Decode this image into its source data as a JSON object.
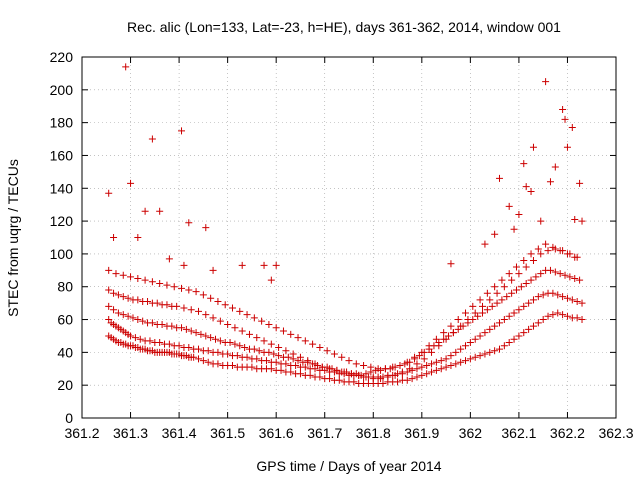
{
  "chart_data": {
    "type": "scatter",
    "title": "Rec. alic (Lon=133, Lat=-23, h=HE), days 361-362, 2014, window 001",
    "xlabel": "GPS time / Days of year 2014",
    "ylabel": "STEC from uqrg / TECUs",
    "xlim": [
      361.2,
      362.3
    ],
    "ylim": [
      0,
      220
    ],
    "xticks": [
      361.2,
      361.3,
      361.4,
      361.5,
      361.6,
      361.7,
      361.8,
      361.9,
      362,
      362.1,
      362.2,
      362.3
    ],
    "xtick_labels": [
      "361.2",
      "361.3",
      "361.4",
      "361.5",
      "361.6",
      "361.7",
      "361.8",
      "361.9",
      "362",
      "362.1",
      "362.2",
      "362.3"
    ],
    "yticks": [
      0,
      20,
      40,
      60,
      80,
      100,
      120,
      140,
      160,
      180,
      200,
      220
    ],
    "ytick_labels": [
      "0",
      "20",
      "40",
      "60",
      "80",
      "100",
      "120",
      "140",
      "160",
      "180",
      "200",
      "220"
    ],
    "grid": true,
    "marker": "plus",
    "color": "#cc0000",
    "series": [
      {
        "x": [
          361.255,
          361.26,
          361.265,
          361.27,
          361.275,
          361.28,
          361.285,
          361.29,
          361.295,
          361.3,
          361.305,
          361.31,
          361.315,
          361.32,
          361.325,
          361.33,
          361.335,
          361.34,
          361.345,
          361.35,
          361.355,
          361.36,
          361.365,
          361.37,
          361.375,
          361.38,
          361.385,
          361.39,
          361.395,
          361.4,
          361.405,
          361.41,
          361.415,
          361.42,
          361.425,
          361.43,
          361.44,
          361.45,
          361.46,
          361.47,
          361.48,
          361.49,
          361.5,
          361.51,
          361.52,
          361.53,
          361.54,
          361.55,
          361.56,
          361.57,
          361.58,
          361.59,
          361.6,
          361.61,
          361.62,
          361.63,
          361.64,
          361.65,
          361.66,
          361.67,
          361.68,
          361.69,
          361.7,
          361.71,
          361.72,
          361.73,
          361.74,
          361.75,
          361.76,
          361.77,
          361.78,
          361.79,
          361.8,
          361.81,
          361.82,
          361.83,
          361.84,
          361.85,
          361.86,
          361.87,
          361.88,
          361.89,
          361.9,
          361.91,
          361.92,
          361.93,
          361.94,
          361.95,
          361.96,
          361.97,
          361.98,
          361.99,
          362.0,
          362.01,
          362.02,
          362.03,
          362.04,
          362.05,
          362.06,
          362.07,
          362.08,
          362.09,
          362.1,
          362.11,
          362.12,
          362.13,
          362.14,
          362.15,
          362.16,
          362.17,
          362.18,
          362.19,
          362.2,
          362.21,
          362.22,
          362.23
        ],
        "y": [
          50,
          49,
          48,
          47,
          46,
          46,
          45,
          45,
          44,
          44,
          44,
          43,
          43,
          42,
          42,
          42,
          41,
          41,
          41,
          40,
          40,
          40,
          40,
          40,
          40,
          40,
          39,
          39,
          39,
          39,
          38,
          38,
          38,
          37,
          37,
          37,
          36,
          35,
          34,
          33,
          33,
          32,
          32,
          32,
          31,
          31,
          31,
          31,
          30,
          30,
          30,
          30,
          29,
          29,
          28,
          28,
          27,
          27,
          26,
          26,
          25,
          25,
          24,
          24,
          23,
          23,
          22,
          22,
          22,
          21,
          21,
          21,
          21,
          21,
          21,
          22,
          22,
          22,
          23,
          23,
          24,
          25,
          26,
          27,
          28,
          29,
          30,
          31,
          32,
          33,
          34,
          35,
          36,
          37,
          38,
          39,
          40,
          41,
          42,
          44,
          46,
          48,
          50,
          52,
          54,
          56,
          58,
          60,
          62,
          63,
          64,
          63,
          62,
          61,
          61,
          60
        ]
      },
      {
        "x": [
          361.255,
          361.26,
          361.265,
          361.27,
          361.275,
          361.28,
          361.285,
          361.29,
          361.295,
          361.3,
          361.31,
          361.32,
          361.33,
          361.34,
          361.35,
          361.36,
          361.37,
          361.38,
          361.39,
          361.4,
          361.41,
          361.42,
          361.43,
          361.44,
          361.45,
          361.46,
          361.47,
          361.48,
          361.49,
          361.5,
          361.51,
          361.52,
          361.53,
          361.54,
          361.55,
          361.56,
          361.57,
          361.58,
          361.59,
          361.6,
          361.61,
          361.62,
          361.63,
          361.64,
          361.65,
          361.66,
          361.67,
          361.68,
          361.69,
          361.7,
          361.71,
          361.72,
          361.73,
          361.74,
          361.75,
          361.76,
          361.77,
          361.78,
          361.79,
          361.8,
          361.81,
          361.82,
          361.83,
          361.84,
          361.85,
          361.86,
          361.87,
          361.88,
          361.89,
          361.9,
          361.91,
          361.92,
          361.93,
          361.94,
          361.95,
          361.96,
          361.97,
          361.98,
          361.99,
          362.0,
          362.01,
          362.02,
          362.03,
          362.04,
          362.05,
          362.06,
          362.07,
          362.08,
          362.09,
          362.1,
          362.11,
          362.12,
          362.13,
          362.14,
          362.15,
          362.16,
          362.17,
          362.18,
          362.19,
          362.2,
          362.21,
          362.22,
          362.23
        ],
        "y": [
          60,
          58,
          57,
          56,
          55,
          54,
          53,
          52,
          51,
          50,
          49,
          48,
          47,
          47,
          46,
          46,
          45,
          45,
          44,
          44,
          43,
          43,
          42,
          42,
          41,
          41,
          40,
          40,
          39,
          39,
          38,
          38,
          37,
          37,
          36,
          36,
          35,
          35,
          34,
          34,
          33,
          33,
          32,
          32,
          31,
          31,
          30,
          30,
          29,
          29,
          28,
          28,
          27,
          27,
          26,
          26,
          26,
          25,
          25,
          25,
          25,
          25,
          26,
          26,
          27,
          27,
          28,
          29,
          30,
          31,
          32,
          33,
          34,
          35,
          36,
          38,
          40,
          42,
          44,
          46,
          48,
          50,
          52,
          54,
          56,
          58,
          60,
          62,
          64,
          66,
          68,
          70,
          72,
          74,
          75,
          76,
          76,
          75,
          74,
          73,
          72,
          71,
          70
        ]
      },
      {
        "x": [
          361.255,
          361.265,
          361.275,
          361.285,
          361.295,
          361.305,
          361.315,
          361.325,
          361.335,
          361.345,
          361.355,
          361.365,
          361.375,
          361.385,
          361.395,
          361.405,
          361.415,
          361.425,
          361.435,
          361.445,
          361.455,
          361.465,
          361.475,
          361.485,
          361.495,
          361.505,
          361.515,
          361.525,
          361.535,
          361.545,
          361.555,
          361.565,
          361.575,
          361.585,
          361.595,
          361.605,
          361.615,
          361.625,
          361.635,
          361.645,
          361.655,
          361.665,
          361.675,
          361.685,
          361.695,
          361.705,
          361.715,
          361.725,
          361.735,
          361.745,
          361.755,
          361.765,
          361.775,
          361.785,
          361.795,
          361.805,
          361.815,
          361.825,
          361.835,
          361.845,
          361.855,
          361.865,
          361.875,
          361.885,
          361.895,
          361.905,
          361.915,
          361.925,
          361.935,
          361.945,
          361.955,
          361.965,
          361.975,
          361.985,
          361.995,
          362.005,
          362.015,
          362.025,
          362.035,
          362.045,
          362.055,
          362.065,
          362.075,
          362.085,
          362.095,
          362.105,
          362.115,
          362.125,
          362.135,
          362.145,
          362.155,
          362.165,
          362.175,
          362.185,
          362.195,
          362.205,
          362.215,
          362.225
        ],
        "y": [
          68,
          66,
          64,
          63,
          62,
          61,
          60,
          59,
          58,
          58,
          57,
          57,
          56,
          56,
          55,
          55,
          54,
          53,
          52,
          51,
          50,
          49,
          48,
          47,
          46,
          46,
          45,
          44,
          43,
          42,
          42,
          41,
          40,
          40,
          39,
          38,
          37,
          37,
          36,
          35,
          34,
          34,
          33,
          32,
          31,
          31,
          30,
          29,
          28,
          28,
          27,
          27,
          26,
          27,
          28,
          29,
          29,
          30,
          30,
          31,
          32,
          33,
          34,
          36,
          38,
          40,
          42,
          44,
          46,
          48,
          50,
          52,
          54,
          56,
          58,
          60,
          62,
          64,
          66,
          68,
          70,
          72,
          74,
          76,
          78,
          80,
          82,
          84,
          86,
          88,
          90,
          90,
          89,
          88,
          87,
          86,
          85,
          84
        ]
      },
      {
        "x": [
          361.255,
          361.265,
          361.275,
          361.285,
          361.295,
          361.305,
          361.315,
          361.325,
          361.335,
          361.345,
          361.355,
          361.365,
          361.375,
          361.385,
          361.395,
          361.41,
          361.425,
          361.44,
          361.455,
          361.47,
          361.485,
          361.5,
          361.515,
          361.53,
          361.545,
          361.56,
          361.575,
          361.59,
          361.605,
          361.62,
          361.635,
          361.65,
          361.665,
          361.68,
          361.695,
          361.71,
          361.725,
          361.74,
          361.755,
          361.77,
          361.785,
          361.8,
          361.815,
          361.83,
          361.845,
          361.86,
          361.875,
          361.89,
          361.905,
          361.92,
          361.935,
          361.95,
          361.965,
          361.98,
          361.995,
          362.01,
          362.025,
          362.04,
          362.055,
          362.07,
          362.085,
          362.1,
          362.115,
          362.13,
          362.145,
          362.16,
          362.175,
          362.19,
          362.205,
          362.22
        ],
        "y": [
          78,
          76,
          75,
          74,
          73,
          72,
          72,
          71,
          71,
          70,
          70,
          69,
          69,
          68,
          68,
          67,
          66,
          65,
          63,
          61,
          59,
          57,
          55,
          53,
          51,
          49,
          47,
          45,
          43,
          41,
          39,
          37,
          35,
          33,
          31,
          30,
          29,
          28,
          27,
          26,
          25,
          24,
          24,
          25,
          26,
          28,
          30,
          33,
          36,
          40,
          44,
          48,
          52,
          56,
          60,
          64,
          68,
          72,
          76,
          80,
          84,
          88,
          92,
          96,
          100,
          102,
          103,
          102,
          100,
          98
        ]
      },
      {
        "x": [
          361.255,
          361.27,
          361.285,
          361.3,
          361.315,
          361.33,
          361.345,
          361.36,
          361.375,
          361.39,
          361.405,
          361.42,
          361.435,
          361.45,
          361.465,
          361.48,
          361.495,
          361.51,
          361.525,
          361.54,
          361.555,
          361.57,
          361.585,
          361.6,
          361.615,
          361.63,
          361.645,
          361.66,
          361.675,
          361.69,
          361.705,
          361.72,
          361.735,
          361.75,
          361.765,
          361.78,
          361.795,
          361.81,
          361.825,
          361.84,
          361.855,
          361.87,
          361.885,
          361.9,
          361.915,
          361.93,
          361.945,
          361.96,
          361.975,
          361.99,
          362.005,
          362.02,
          362.035,
          362.05,
          362.065,
          362.08,
          362.095,
          362.11,
          362.125,
          362.14,
          362.155,
          362.17,
          362.185,
          362.2,
          362.215
        ],
        "y": [
          90,
          88,
          87,
          86,
          85,
          84,
          83,
          82,
          81,
          80,
          79,
          78,
          77,
          75,
          73,
          71,
          69,
          67,
          65,
          63,
          61,
          59,
          57,
          55,
          53,
          51,
          49,
          47,
          45,
          43,
          41,
          39,
          37,
          35,
          33,
          32,
          31,
          30,
          30,
          31,
          32,
          34,
          37,
          40,
          44,
          48,
          52,
          56,
          60,
          64,
          68,
          72,
          76,
          80,
          84,
          88,
          92,
          96,
          100,
          103,
          106,
          104,
          102,
          100,
          98
        ]
      },
      {
        "x": [
          361.255,
          361.265,
          361.29,
          361.3,
          361.315,
          361.33,
          361.345,
          361.36,
          361.38,
          361.405,
          361.41,
          361.42,
          361.455,
          361.47,
          361.53,
          361.575,
          361.59,
          361.6,
          361.96,
          362.03,
          362.05,
          362.06,
          362.08,
          362.09,
          362.1,
          362.11,
          362.115,
          362.125,
          362.13,
          362.145,
          362.155,
          362.165,
          362.175,
          362.19,
          362.195,
          362.2,
          362.21,
          362.215,
          362.225,
          362.23
        ],
        "y": [
          137,
          110,
          214,
          143,
          110,
          126,
          170,
          126,
          97,
          175,
          93,
          119,
          116,
          90,
          93,
          93,
          84,
          93,
          94,
          106,
          112,
          146,
          129,
          115,
          124,
          155,
          141,
          138,
          165,
          120,
          205,
          144,
          153,
          188,
          182,
          165,
          177,
          121,
          143,
          120
        ]
      }
    ]
  }
}
